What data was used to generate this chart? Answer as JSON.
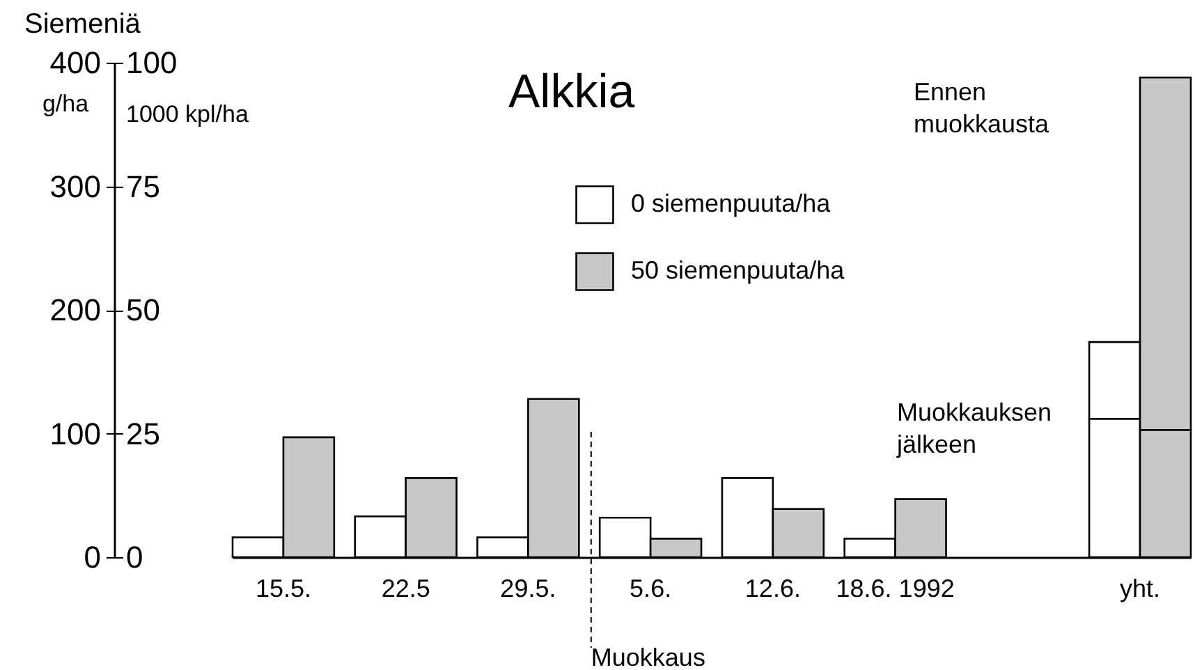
{
  "chart_data": {
    "type": "bar",
    "title": "Alkkia",
    "ylabel": "Siemeniä",
    "y2label": "1000 kpl/ha",
    "categories": [
      "15.5.",
      "22.5",
      "29.5.",
      "5.6.",
      "12.6.",
      "18.6. 1992",
      null,
      "yht."
    ],
    "series": [
      {
        "name": "0 siemenpuuta/ha",
        "color": "#ffffff",
        "values": [
          16,
          33,
          16,
          32,
          64,
          15,
          null,
          112
        ]
      },
      {
        "name": "50 siemenpuuta/ha",
        "color": "#c8c8c8",
        "values": [
          97,
          64,
          128,
          15,
          39,
          47,
          null,
          103
        ]
      },
      {
        "color": "#ffffff",
        "base": [
          null,
          null,
          null,
          null,
          null,
          null,
          null,
          112
        ],
        "values": [
          null,
          null,
          null,
          null,
          null,
          null,
          null,
          62
        ]
      },
      {
        "color": "#c8c8c8",
        "base": [
          null,
          null,
          null,
          null,
          null,
          null,
          null,
          103
        ],
        "values": [
          null,
          null,
          null,
          null,
          null,
          null,
          null,
          285
        ]
      }
    ],
    "ylim": [
      0,
      400
    ],
    "yticks": [
      0,
      100,
      200,
      300,
      400
    ],
    "y2lim": [
      0,
      100
    ],
    "y2ticks": [
      0,
      25,
      50,
      75,
      100
    ],
    "ref_lines": [
      {
        "axis": "x",
        "value": "5.6.",
        "label": "Muokkaus",
        "line_style": "dashed"
      }
    ],
    "annotations": [
      "g/ha",
      "Ennen muokkausta",
      "Muokkauksen jälkeen"
    ],
    "legend": "top",
    "grid": false
  }
}
